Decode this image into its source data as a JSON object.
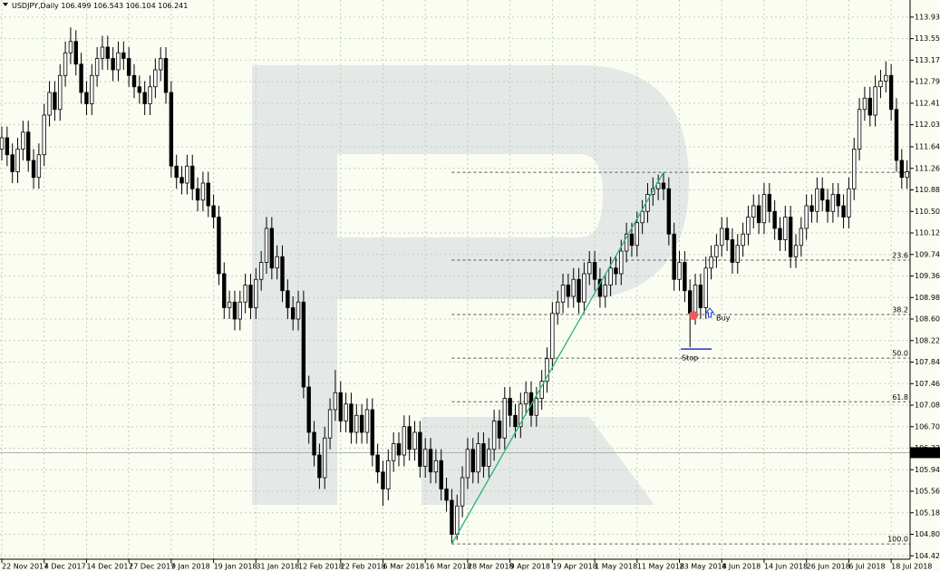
{
  "chart_data": {
    "type": "candlestick",
    "symbol": "USDJPY,Daily",
    "header_ohlc": [
      106.499,
      106.543,
      106.104,
      106.241
    ],
    "categories": [
      "22 Nov 2017",
      null,
      null,
      null,
      null,
      null,
      null,
      null,
      "4 Dec 2017",
      null,
      null,
      null,
      null,
      null,
      null,
      null,
      "14 Dec 2017",
      null,
      null,
      null,
      null,
      null,
      null,
      null,
      "27 Dec 2017",
      null,
      null,
      null,
      null,
      null,
      null,
      null,
      "9 Jan 2018",
      null,
      null,
      null,
      null,
      null,
      null,
      null,
      "19 Jan 2018",
      null,
      null,
      null,
      null,
      null,
      null,
      null,
      "31 Jan 2018",
      null,
      null,
      null,
      null,
      null,
      null,
      null,
      "12 Feb 2018",
      null,
      null,
      null,
      null,
      null,
      null,
      null,
      "22 Feb 2018",
      null,
      null,
      null,
      null,
      null,
      null,
      null,
      "6 Mar 2018",
      null,
      null,
      null,
      null,
      null,
      null,
      null,
      "16 Mar 2018",
      null,
      null,
      null,
      null,
      null,
      null,
      null,
      "28 Mar 2018",
      null,
      null,
      null,
      null,
      null,
      null,
      null,
      "9 Apr 2018",
      null,
      null,
      null,
      null,
      null,
      null,
      null,
      "19 Apr 2018",
      null,
      null,
      null,
      null,
      null,
      null,
      null,
      "1 May 2018",
      null,
      null,
      null,
      null,
      null,
      null,
      null,
      "11 May 2018",
      null,
      null,
      null,
      null,
      null,
      null,
      null,
      "23 May 2018",
      null,
      null,
      null,
      null,
      null,
      null,
      null,
      "4 Jun 2018",
      null,
      null,
      null,
      null,
      null,
      null,
      null,
      "14 Jun 2018",
      null,
      null,
      null,
      null,
      null,
      null,
      null,
      "26 Jun 2018",
      null,
      null,
      null,
      null,
      null,
      null,
      null,
      "6 Jul 2018",
      null,
      null,
      null,
      null,
      null,
      null,
      null,
      "18 Jul 2018",
      null,
      null,
      null
    ],
    "ohlc": [
      [
        111.6,
        112.0,
        111.4,
        111.8
      ],
      [
        111.8,
        112.0,
        111.3,
        111.5
      ],
      [
        111.5,
        111.7,
        111.0,
        111.2
      ],
      [
        111.2,
        111.8,
        111.0,
        111.6
      ],
      [
        111.6,
        112.1,
        111.4,
        111.9
      ],
      [
        111.9,
        112.1,
        111.2,
        111.4
      ],
      [
        111.4,
        111.6,
        110.9,
        111.1
      ],
      [
        111.1,
        111.7,
        110.9,
        111.5
      ],
      [
        111.5,
        112.4,
        111.3,
        112.2
      ],
      [
        112.2,
        112.8,
        112.0,
        112.6
      ],
      [
        112.6,
        112.8,
        112.1,
        112.3
      ],
      [
        112.3,
        113.1,
        112.1,
        112.9
      ],
      [
        112.9,
        113.5,
        112.7,
        113.3
      ],
      [
        113.3,
        113.75,
        113.1,
        113.5
      ],
      [
        113.5,
        113.7,
        112.9,
        113.1
      ],
      [
        113.1,
        113.3,
        112.4,
        112.6
      ],
      [
        112.6,
        112.8,
        112.2,
        112.4
      ],
      [
        112.4,
        113.1,
        112.2,
        112.9
      ],
      [
        112.9,
        113.4,
        112.7,
        113.2
      ],
      [
        113.2,
        113.6,
        113.0,
        113.4
      ],
      [
        113.4,
        113.6,
        113.0,
        113.2
      ],
      [
        113.2,
        113.4,
        112.8,
        113.0
      ],
      [
        113.0,
        113.5,
        112.8,
        113.3
      ],
      [
        113.3,
        113.5,
        113.0,
        113.2
      ],
      [
        113.2,
        113.4,
        112.7,
        112.9
      ],
      [
        112.9,
        113.1,
        112.5,
        112.7
      ],
      [
        112.7,
        112.9,
        112.4,
        112.6
      ],
      [
        112.6,
        112.8,
        112.2,
        112.4
      ],
      [
        112.4,
        112.9,
        112.2,
        112.7
      ],
      [
        112.7,
        113.2,
        112.5,
        113.0
      ],
      [
        113.0,
        113.4,
        112.8,
        113.2
      ],
      [
        113.2,
        113.4,
        112.4,
        112.6
      ],
      [
        112.6,
        112.8,
        111.1,
        111.3
      ],
      [
        111.3,
        111.5,
        110.9,
        111.1
      ],
      [
        111.1,
        111.3,
        110.8,
        111.0
      ],
      [
        111.0,
        111.5,
        110.8,
        111.3
      ],
      [
        111.3,
        111.5,
        110.7,
        110.9
      ],
      [
        110.9,
        111.1,
        110.5,
        110.7
      ],
      [
        110.7,
        111.2,
        110.5,
        111.0
      ],
      [
        111.0,
        111.2,
        110.4,
        110.6
      ],
      [
        110.6,
        110.8,
        110.2,
        110.4
      ],
      [
        110.4,
        110.6,
        109.2,
        109.4
      ],
      [
        109.4,
        109.6,
        108.6,
        108.8
      ],
      [
        108.8,
        109.1,
        108.6,
        108.9
      ],
      [
        108.9,
        109.1,
        108.4,
        108.6
      ],
      [
        108.6,
        109.1,
        108.4,
        108.9
      ],
      [
        108.9,
        109.4,
        108.7,
        109.2
      ],
      [
        109.2,
        109.4,
        108.6,
        108.8
      ],
      [
        108.8,
        109.5,
        108.6,
        109.3
      ],
      [
        109.3,
        109.8,
        109.1,
        109.6
      ],
      [
        109.6,
        110.4,
        109.4,
        110.2
      ],
      [
        110.2,
        110.4,
        109.3,
        109.5
      ],
      [
        109.5,
        109.9,
        109.3,
        109.7
      ],
      [
        109.7,
        109.9,
        108.9,
        109.1
      ],
      [
        109.1,
        109.3,
        108.6,
        108.8
      ],
      [
        108.8,
        109.0,
        108.4,
        108.6
      ],
      [
        108.6,
        109.1,
        108.4,
        108.9
      ],
      [
        108.9,
        109.1,
        107.2,
        107.4
      ],
      [
        107.4,
        107.6,
        106.4,
        106.6
      ],
      [
        106.6,
        106.8,
        106.0,
        106.2
      ],
      [
        106.2,
        106.4,
        105.6,
        105.8
      ],
      [
        105.8,
        106.7,
        105.6,
        106.5
      ],
      [
        106.5,
        107.2,
        106.3,
        107.0
      ],
      [
        107.0,
        107.7,
        106.8,
        107.3
      ],
      [
        107.3,
        107.5,
        106.6,
        106.8
      ],
      [
        106.8,
        107.3,
        106.6,
        107.1
      ],
      [
        107.1,
        107.3,
        106.4,
        106.6
      ],
      [
        106.6,
        107.1,
        106.4,
        106.9
      ],
      [
        106.9,
        107.1,
        106.4,
        106.6
      ],
      [
        106.6,
        107.2,
        106.4,
        107.0
      ],
      [
        107.0,
        107.2,
        106.0,
        106.2
      ],
      [
        106.2,
        106.4,
        105.7,
        105.9
      ],
      [
        105.9,
        106.1,
        105.3,
        105.6
      ],
      [
        105.6,
        106.3,
        105.4,
        106.1
      ],
      [
        106.1,
        106.6,
        105.9,
        106.4
      ],
      [
        106.4,
        106.6,
        106.0,
        106.2
      ],
      [
        106.2,
        106.9,
        106.0,
        106.7
      ],
      [
        106.7,
        106.9,
        106.1,
        106.3
      ],
      [
        106.3,
        106.8,
        106.1,
        106.6
      ],
      [
        106.6,
        106.8,
        105.8,
        106.0
      ],
      [
        106.0,
        106.5,
        105.8,
        106.3
      ],
      [
        106.3,
        106.5,
        105.7,
        105.9
      ],
      [
        105.9,
        106.3,
        105.7,
        106.1
      ],
      [
        106.1,
        106.3,
        105.4,
        105.6
      ],
      [
        105.6,
        105.8,
        105.2,
        105.4
      ],
      [
        105.4,
        105.6,
        104.63,
        104.8
      ],
      [
        104.8,
        105.5,
        104.7,
        105.3
      ],
      [
        105.3,
        106.0,
        105.1,
        105.8
      ],
      [
        105.8,
        106.5,
        105.6,
        106.3
      ],
      [
        106.3,
        106.5,
        105.7,
        105.9
      ],
      [
        105.9,
        106.6,
        105.7,
        106.4
      ],
      [
        106.4,
        106.6,
        105.8,
        106.0
      ],
      [
        106.0,
        106.5,
        105.8,
        106.3
      ],
      [
        106.3,
        107.0,
        106.1,
        106.8
      ],
      [
        106.8,
        107.0,
        106.3,
        106.5
      ],
      [
        106.5,
        107.4,
        106.3,
        107.2
      ],
      [
        107.2,
        107.4,
        106.7,
        106.9
      ],
      [
        106.9,
        107.1,
        106.5,
        106.7
      ],
      [
        106.7,
        107.3,
        106.5,
        107.1
      ],
      [
        107.1,
        107.5,
        106.9,
        107.3
      ],
      [
        107.3,
        107.5,
        106.7,
        106.9
      ],
      [
        106.9,
        107.4,
        106.7,
        107.2
      ],
      [
        107.2,
        107.7,
        107.0,
        107.5
      ],
      [
        107.5,
        108.1,
        107.3,
        107.9
      ],
      [
        107.9,
        108.9,
        107.7,
        108.7
      ],
      [
        108.7,
        109.1,
        108.5,
        108.9
      ],
      [
        108.9,
        109.4,
        108.7,
        109.2
      ],
      [
        109.2,
        109.4,
        108.8,
        109.0
      ],
      [
        109.0,
        109.5,
        108.8,
        109.3
      ],
      [
        109.3,
        109.5,
        108.7,
        108.9
      ],
      [
        108.9,
        109.6,
        108.7,
        109.4
      ],
      [
        109.4,
        109.8,
        109.2,
        109.6
      ],
      [
        109.6,
        109.8,
        109.1,
        109.3
      ],
      [
        109.3,
        109.5,
        108.8,
        109.0
      ],
      [
        109.0,
        109.4,
        108.8,
        109.2
      ],
      [
        109.2,
        109.7,
        109.0,
        109.5
      ],
      [
        109.5,
        109.7,
        109.2,
        109.4
      ],
      [
        109.4,
        110.0,
        109.2,
        109.8
      ],
      [
        109.8,
        110.3,
        109.6,
        110.1
      ],
      [
        110.1,
        110.3,
        109.7,
        109.9
      ],
      [
        109.9,
        110.5,
        109.7,
        110.3
      ],
      [
        110.3,
        110.7,
        110.1,
        110.5
      ],
      [
        110.5,
        111.0,
        110.3,
        110.8
      ],
      [
        110.8,
        111.1,
        110.6,
        110.9
      ],
      [
        110.9,
        111.15,
        110.7,
        111.0
      ],
      [
        111.0,
        111.19,
        110.7,
        110.9
      ],
      [
        110.9,
        111.1,
        109.9,
        110.1
      ],
      [
        110.1,
        110.3,
        109.1,
        109.3
      ],
      [
        109.3,
        109.8,
        109.1,
        109.6
      ],
      [
        109.6,
        109.8,
        108.9,
        109.1
      ],
      [
        109.1,
        109.3,
        108.1,
        108.7
      ],
      [
        108.7,
        109.4,
        108.5,
        109.2
      ],
      [
        109.2,
        109.4,
        108.6,
        108.8
      ],
      [
        108.8,
        109.7,
        108.6,
        109.5
      ],
      [
        109.5,
        109.9,
        109.3,
        109.7
      ],
      [
        109.7,
        110.1,
        109.5,
        109.9
      ],
      [
        109.9,
        110.4,
        109.7,
        110.2
      ],
      [
        110.2,
        110.4,
        109.8,
        110.0
      ],
      [
        110.0,
        110.2,
        109.4,
        109.6
      ],
      [
        109.6,
        110.1,
        109.4,
        109.9
      ],
      [
        109.9,
        110.3,
        109.7,
        110.1
      ],
      [
        110.1,
        110.6,
        109.9,
        110.4
      ],
      [
        110.4,
        110.8,
        110.2,
        110.6
      ],
      [
        110.6,
        110.8,
        110.1,
        110.3
      ],
      [
        110.3,
        111.0,
        110.1,
        110.8
      ],
      [
        110.8,
        111.0,
        110.3,
        110.5
      ],
      [
        110.5,
        110.7,
        110.0,
        110.2
      ],
      [
        110.2,
        110.4,
        109.8,
        110.0
      ],
      [
        110.0,
        110.6,
        109.8,
        110.4
      ],
      [
        110.4,
        110.6,
        109.5,
        109.7
      ],
      [
        109.7,
        110.1,
        109.5,
        109.9
      ],
      [
        109.9,
        110.4,
        109.7,
        110.2
      ],
      [
        110.2,
        110.8,
        110.0,
        110.6
      ],
      [
        110.6,
        110.8,
        110.3,
        110.5
      ],
      [
        110.5,
        111.1,
        110.3,
        110.9
      ],
      [
        110.9,
        111.1,
        110.5,
        110.7
      ],
      [
        110.7,
        110.9,
        110.3,
        110.5
      ],
      [
        110.5,
        111.0,
        110.3,
        110.8
      ],
      [
        110.8,
        111.0,
        110.4,
        110.6
      ],
      [
        110.6,
        110.8,
        110.2,
        110.4
      ],
      [
        110.4,
        111.1,
        110.2,
        110.9
      ],
      [
        110.9,
        111.8,
        110.7,
        111.6
      ],
      [
        111.6,
        112.5,
        111.4,
        112.3
      ],
      [
        112.3,
        112.7,
        112.1,
        112.5
      ],
      [
        112.5,
        112.7,
        112.0,
        112.2
      ],
      [
        112.2,
        112.9,
        112.0,
        112.7
      ],
      [
        112.7,
        113.0,
        112.5,
        112.8
      ],
      [
        112.8,
        113.15,
        112.6,
        112.9
      ],
      [
        112.9,
        113.1,
        112.1,
        112.3
      ],
      [
        112.3,
        112.5,
        111.2,
        111.4
      ],
      [
        111.4,
        111.6,
        110.9,
        111.1
      ],
      [
        111.1,
        111.4,
        110.9,
        111.2
      ]
    ],
    "ylim": [
      104.36,
      114.2
    ],
    "yticks": [
      {
        "value": 113.93,
        "label": "113.930"
      },
      {
        "value": 113.55,
        "label": "113.550"
      },
      {
        "value": 113.17,
        "label": "113.170"
      },
      {
        "value": 112.79,
        "label": "112.790"
      },
      {
        "value": 112.41,
        "label": "112.410"
      },
      {
        "value": 112.03,
        "label": "112.030"
      },
      {
        "value": 111.64,
        "label": "111.640"
      },
      {
        "value": 111.26,
        "label": "111.260"
      },
      {
        "value": 110.88,
        "label": "110.880"
      },
      {
        "value": 110.5,
        "label": "110.500"
      },
      {
        "value": 110.12,
        "label": "110.120"
      },
      {
        "value": 109.74,
        "label": "109.740"
      },
      {
        "value": 109.36,
        "label": "109.360"
      },
      {
        "value": 108.98,
        "label": "108.980"
      },
      {
        "value": 108.6,
        "label": "108.600"
      },
      {
        "value": 108.22,
        "label": "108.220"
      },
      {
        "value": 107.84,
        "label": "107.840"
      },
      {
        "value": 107.46,
        "label": "107.460"
      },
      {
        "value": 107.08,
        "label": "107.080"
      },
      {
        "value": 106.7,
        "label": "106.700"
      },
      {
        "value": 106.32,
        "label": "106.320"
      },
      {
        "value": 105.94,
        "label": "105.940"
      },
      {
        "value": 105.56,
        "label": "105.560"
      },
      {
        "value": 105.18,
        "label": "105.180"
      },
      {
        "value": 104.8,
        "label": "104.800"
      },
      {
        "value": 104.42,
        "label": "104.420"
      }
    ],
    "grid": true,
    "current_price": 106.241,
    "fibonacci": [
      {
        "value": 111.19
      },
      {
        "value": 109.64,
        "label": "23.6"
      },
      {
        "value": 108.68,
        "label": "38.2"
      },
      {
        "value": 107.91,
        "label": "50.0"
      },
      {
        "value": 107.14,
        "label": "61.8"
      },
      {
        "value": 104.63,
        "label": "100.0"
      }
    ],
    "trendline": {
      "from": {
        "index": 85,
        "value": 104.63
      },
      "to": {
        "index": 125,
        "value": 111.19
      },
      "color": "#35b57a"
    },
    "buy": {
      "label": "Buy",
      "index": 131,
      "value": 108.68
    },
    "stop": {
      "label": "Stop",
      "index": 131,
      "value": 108.07
    },
    "colors": {
      "up": "#ffffff",
      "down": "#000000",
      "outline": "#000000",
      "entry": "#ef5a5a",
      "signal": "#1a33d6"
    }
  }
}
